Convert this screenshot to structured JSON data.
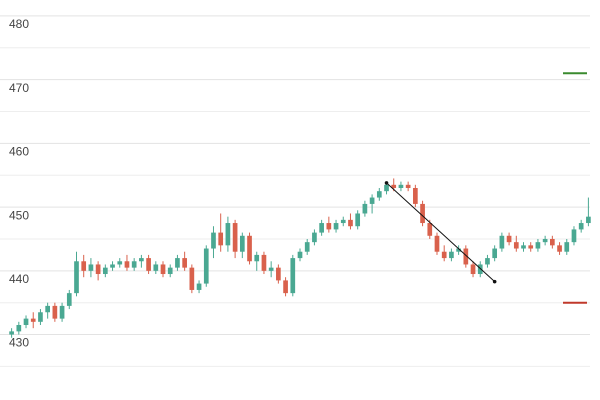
{
  "chart_data": {
    "type": "candlestick",
    "up_color": "#4aa892",
    "down_color": "#d9614c",
    "xlim": [
      -0.5,
      80.5
    ],
    "ylim": [
      421.3,
      482.5
    ],
    "yticks": [
      430,
      440,
      450,
      460,
      470,
      480
    ],
    "minor_yticks": [
      425,
      435,
      445,
      455,
      465,
      475
    ],
    "grid": true,
    "candles": [
      [
        430,
        431,
        429.5,
        430.5
      ],
      [
        430.5,
        432,
        430,
        431.5
      ],
      [
        431.5,
        433,
        431,
        432.5
      ],
      [
        432.5,
        433.5,
        431,
        432
      ],
      [
        432,
        434,
        431.5,
        433.5
      ],
      [
        433.5,
        435,
        432.5,
        434.5
      ],
      [
        434.5,
        435,
        432,
        432.5
      ],
      [
        432.5,
        435,
        432,
        434.5
      ],
      [
        434.5,
        437,
        434,
        436.5
      ],
      [
        436.5,
        443,
        436,
        441.5
      ],
      [
        441.5,
        442.5,
        439,
        440
      ],
      [
        440,
        442,
        439,
        441
      ],
      [
        441,
        441.5,
        438.5,
        439.5
      ],
      [
        439.5,
        441,
        439,
        440.5
      ],
      [
        440.5,
        441.5,
        440,
        441
      ],
      [
        441,
        442,
        440.5,
        441.5
      ],
      [
        441.5,
        442.5,
        440,
        440.5
      ],
      [
        440.5,
        442,
        440,
        441.5
      ],
      [
        441.5,
        442.5,
        440.5,
        442
      ],
      [
        442,
        442.5,
        439.5,
        440
      ],
      [
        440,
        441.5,
        439.5,
        441
      ],
      [
        441,
        441.5,
        439,
        439.5
      ],
      [
        439.5,
        441,
        439,
        440.5
      ],
      [
        440.5,
        442.5,
        440,
        442
      ],
      [
        442,
        443,
        440,
        440.5
      ],
      [
        440.5,
        441,
        436.5,
        437
      ],
      [
        437,
        438.5,
        436.5,
        438
      ],
      [
        438,
        444,
        437.5,
        443.5
      ],
      [
        443.5,
        447,
        442,
        446
      ],
      [
        446,
        449,
        443,
        444
      ],
      [
        444,
        448.5,
        443,
        447.5
      ],
      [
        447.5,
        448,
        442,
        443
      ],
      [
        443,
        446,
        442,
        445.5
      ],
      [
        445.5,
        446,
        441,
        441.5
      ],
      [
        441.5,
        443,
        440,
        442.5
      ],
      [
        442.5,
        443,
        439.5,
        440
      ],
      [
        440,
        441.5,
        439,
        440.5
      ],
      [
        440.5,
        441,
        438,
        438.5
      ],
      [
        438.5,
        439,
        436,
        436.5
      ],
      [
        436.5,
        442.5,
        436,
        442
      ],
      [
        442,
        443.5,
        441.5,
        443
      ],
      [
        443,
        445,
        442.5,
        444.5
      ],
      [
        444.5,
        446.5,
        444,
        446
      ],
      [
        446,
        448,
        445.5,
        447.5
      ],
      [
        447.5,
        448.5,
        446,
        446.5
      ],
      [
        446.5,
        448,
        446,
        447.5
      ],
      [
        447.5,
        448.5,
        447,
        448
      ],
      [
        448,
        449,
        446.5,
        447
      ],
      [
        447,
        449.5,
        446.5,
        449
      ],
      [
        449,
        451,
        448.5,
        450.5
      ],
      [
        450.5,
        452,
        449,
        451.5
      ],
      [
        451.5,
        453,
        451,
        452.5
      ],
      [
        452.5,
        454,
        452,
        453.5
      ],
      [
        453.5,
        454.5,
        452.5,
        453
      ],
      [
        453,
        454,
        452.5,
        453.5
      ],
      [
        453.5,
        454,
        452.5,
        453
      ],
      [
        453,
        453.5,
        450,
        450.5
      ],
      [
        450.5,
        451,
        447,
        447.5
      ],
      [
        447.5,
        448,
        445,
        445.5
      ],
      [
        445.5,
        446,
        442.5,
        443
      ],
      [
        443,
        444,
        441.5,
        442
      ],
      [
        442,
        443.5,
        441.5,
        443
      ],
      [
        443,
        444,
        442.5,
        443.5
      ],
      [
        443.5,
        444,
        440.5,
        441
      ],
      [
        441,
        441.5,
        439,
        439.5
      ],
      [
        439.5,
        441.5,
        439,
        441
      ],
      [
        441,
        442.5,
        440.5,
        442
      ],
      [
        442,
        444,
        441.5,
        443.5
      ],
      [
        443.5,
        446,
        443,
        445.5
      ],
      [
        445.5,
        446,
        444,
        444.5
      ],
      [
        444.5,
        445.5,
        443,
        443.5
      ],
      [
        443.5,
        444.5,
        443,
        444
      ],
      [
        444,
        444.5,
        443,
        443.5
      ],
      [
        443.5,
        445,
        443,
        444.5
      ],
      [
        444.5,
        445.5,
        444,
        445
      ],
      [
        445,
        445.5,
        443.5,
        444
      ],
      [
        444,
        444.5,
        442.5,
        443
      ],
      [
        443,
        445,
        442.5,
        444.5
      ],
      [
        444.5,
        447,
        444,
        446.5
      ],
      [
        446.5,
        448,
        446,
        447.5
      ],
      [
        447.5,
        451.5,
        447,
        448.5
      ]
    ],
    "trendline": {
      "x": [
        52,
        67
      ],
      "y": [
        453.8,
        438.3
      ],
      "color": "#111111"
    },
    "levels": [
      {
        "value": 471,
        "color": "#3a8a2e"
      },
      {
        "value": 435,
        "color": "#c0392b"
      }
    ]
  }
}
